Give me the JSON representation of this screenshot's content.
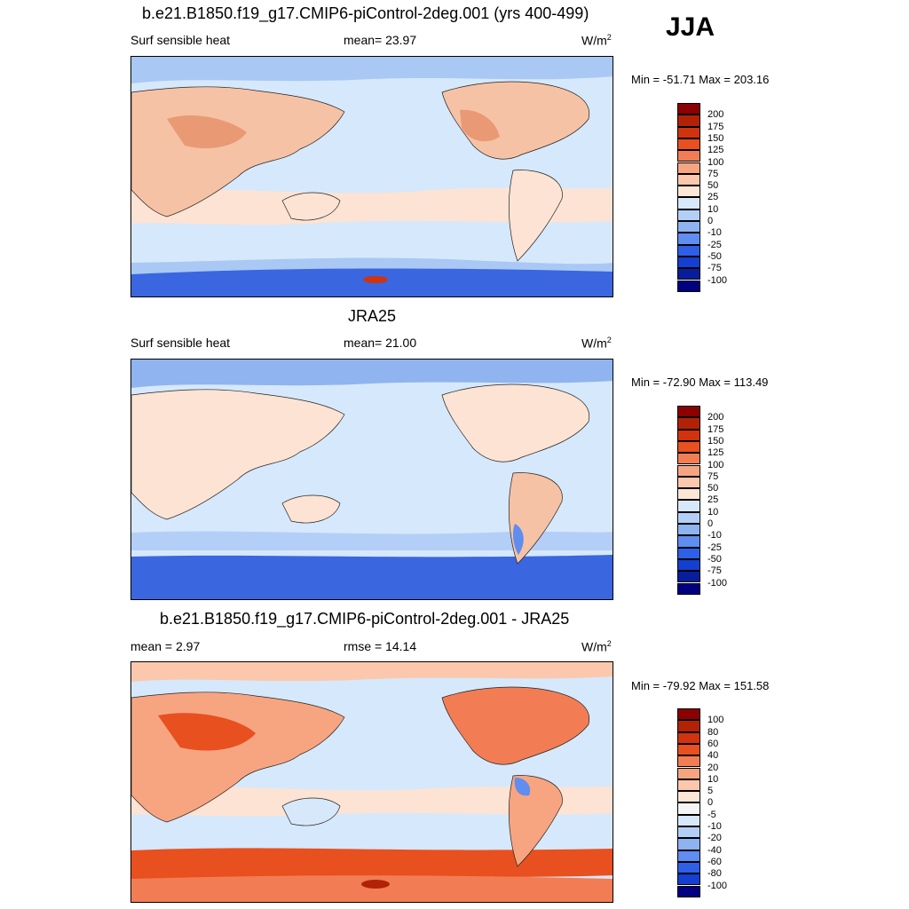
{
  "season_label": "JJA",
  "colors": {
    "land": "#f6c2a6",
    "ocean_warm": "#fde3d3",
    "ocean_cool": "#d6e8fb",
    "polar_cool": "#8fb4ef",
    "polar_deep": "#3a66e0",
    "hot": "#e2603a",
    "coast": "#222222"
  },
  "chart_data": [
    {
      "type": "heatmap",
      "title": "b.e21.B1850.f19_g17.CMIP6-piControl-2deg.001 (yrs 400-499)",
      "left_label": "Surf sensible heat",
      "center_label": "mean=  23.97",
      "units": "W/m",
      "units_exp": "2",
      "stats": "Min = -51.71 Max = 203.16",
      "colorbar": {
        "levels": [
          "200",
          "175",
          "150",
          "125",
          "100",
          "75",
          "50",
          "25",
          "10",
          "0",
          "-10",
          "-25",
          "-50",
          "-75",
          "-100"
        ],
        "colors": [
          "#8b0000",
          "#b22206",
          "#d0330d",
          "#e8501f",
          "#f27d55",
          "#f7a581",
          "#fbc8ad",
          "#fde6d6",
          "#d8e8fb",
          "#b4cff7",
          "#8db3f0",
          "#5f8df0",
          "#2e5fe6",
          "#143fd0",
          "#061e9c",
          "#000080"
        ]
      }
    },
    {
      "type": "heatmap",
      "title": "JRA25",
      "left_label": "Surf sensible heat",
      "center_label": "mean=  21.00",
      "units": "W/m",
      "units_exp": "2",
      "stats": "Min = -72.90 Max = 113.49",
      "colorbar": {
        "levels": [
          "200",
          "175",
          "150",
          "125",
          "100",
          "75",
          "50",
          "25",
          "10",
          "0",
          "-10",
          "-25",
          "-50",
          "-75",
          "-100"
        ],
        "colors": [
          "#8b0000",
          "#b22206",
          "#d0330d",
          "#e8501f",
          "#f27d55",
          "#f7a581",
          "#fbc8ad",
          "#fde6d6",
          "#d8e8fb",
          "#b4cff7",
          "#8db3f0",
          "#5f8df0",
          "#2e5fe6",
          "#143fd0",
          "#061e9c",
          "#000080"
        ]
      }
    },
    {
      "type": "heatmap",
      "title": "b.e21.B1850.f19_g17.CMIP6-piControl-2deg.001 - JRA25",
      "left_label": "mean =   2.97",
      "center_label": "rmse =  14.14",
      "units": "W/m",
      "units_exp": "2",
      "stats": "Min = -79.92 Max = 151.58",
      "colorbar": {
        "levels": [
          "100",
          "80",
          "60",
          "40",
          "20",
          "10",
          "5",
          "0",
          "-5",
          "-10",
          "-20",
          "-40",
          "-60",
          "-80",
          "-100"
        ],
        "colors": [
          "#8b0000",
          "#b22206",
          "#d0330d",
          "#e8501f",
          "#f27d55",
          "#f7a581",
          "#fbc8ad",
          "#fde6d6",
          "#f5f5f5",
          "#d8e8fb",
          "#b4cff7",
          "#8db3f0",
          "#5f8df0",
          "#2e5fe6",
          "#143fd0",
          "#000080"
        ]
      }
    }
  ]
}
